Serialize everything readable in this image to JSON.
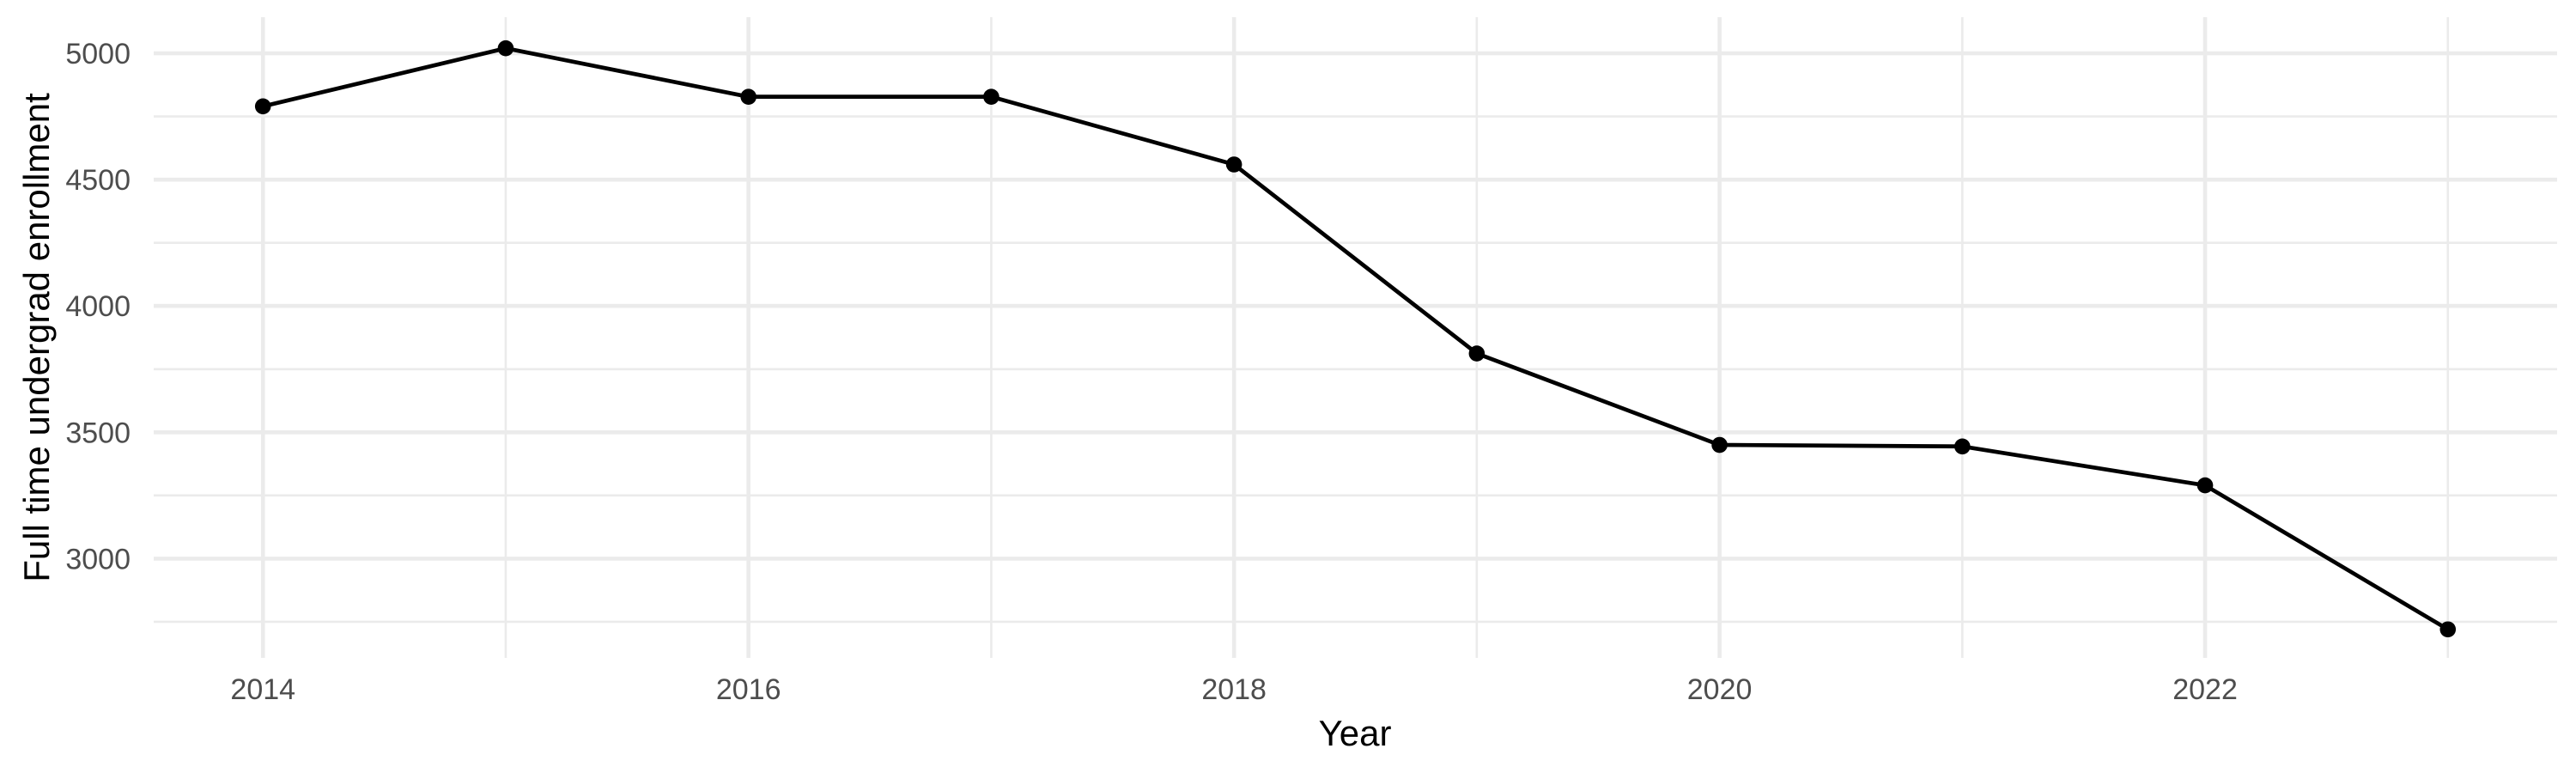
{
  "chart_data": {
    "type": "line",
    "title": "",
    "xlabel": "Year",
    "ylabel": "Full time undergrad enrollment",
    "x": [
      2014,
      2015,
      2016,
      2017,
      2018,
      2019,
      2020,
      2021,
      2022,
      2023
    ],
    "values": [
      4790,
      5020,
      4828,
      4828,
      4560,
      3812,
      3450,
      3444,
      3290,
      2720
    ],
    "series": [
      {
        "name": "Full time undergrad enrollment",
        "x": [
          2014,
          2015,
          2016,
          2017,
          2018,
          2019,
          2020,
          2021,
          2022,
          2023
        ],
        "values": [
          4790,
          5020,
          4828,
          4828,
          4560,
          3812,
          3450,
          3444,
          3290,
          2720
        ]
      }
    ],
    "xlim": [
      2013.55,
      2023.45
    ],
    "ylim": [
      2607,
      5143
    ],
    "x_major_ticks": [
      2014,
      2016,
      2018,
      2020,
      2022
    ],
    "x_major_tick_labels": [
      "2014",
      "2016",
      "2018",
      "2020",
      "2022"
    ],
    "x_minor_ticks": [
      2015,
      2017,
      2019,
      2021,
      2023
    ],
    "y_major_ticks": [
      3000,
      3500,
      4000,
      4500,
      5000
    ],
    "y_major_tick_labels": [
      "3000",
      "3500",
      "4000",
      "4500",
      "5000"
    ],
    "y_minor_ticks": [
      2750,
      3250,
      3750,
      4250,
      4750
    ],
    "grid": "on",
    "legend": "none",
    "marker": "filled-circle",
    "colors": {
      "line": "#000000",
      "point": "#000000",
      "grid_major": "#EBEBEB",
      "grid_minor": "#EBEBEB",
      "tick_label": "#4D4D4D",
      "axis_title": "#000000",
      "background": "#FFFFFF"
    }
  }
}
